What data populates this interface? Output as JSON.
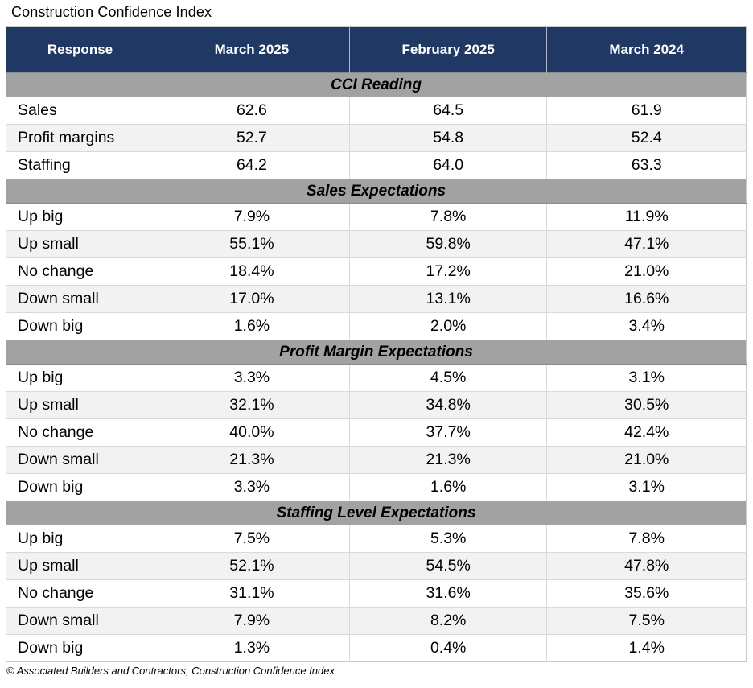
{
  "title": "Construction Confidence Index",
  "footer": "© Associated Builders and Contractors, Construction Confidence Index",
  "colors": {
    "header_bg": "#1f3864",
    "header_text": "#ffffff",
    "section_bg": "#a2a2a2",
    "row_alt_bg": "#f2f2f2",
    "border": "#d9d9d9"
  },
  "chart_data": {
    "type": "table",
    "title": "Construction Confidence Index",
    "columns": [
      "Response",
      "March 2025",
      "February 2025",
      "March 2024"
    ],
    "sections": [
      {
        "label": "CCI Reading",
        "rows": [
          [
            "Sales",
            "62.6",
            "64.5",
            "61.9"
          ],
          [
            "Profit margins",
            "52.7",
            "54.8",
            "52.4"
          ],
          [
            "Staffing",
            "64.2",
            "64.0",
            "63.3"
          ]
        ]
      },
      {
        "label": "Sales Expectations",
        "rows": [
          [
            "Up big",
            "7.9%",
            "7.8%",
            "11.9%"
          ],
          [
            "Up small",
            "55.1%",
            "59.8%",
            "47.1%"
          ],
          [
            "No change",
            "18.4%",
            "17.2%",
            "21.0%"
          ],
          [
            "Down small",
            "17.0%",
            "13.1%",
            "16.6%"
          ],
          [
            "Down big",
            "1.6%",
            "2.0%",
            "3.4%"
          ]
        ]
      },
      {
        "label": "Profit Margin Expectations",
        "rows": [
          [
            "Up big",
            "3.3%",
            "4.5%",
            "3.1%"
          ],
          [
            "Up small",
            "32.1%",
            "34.8%",
            "30.5%"
          ],
          [
            "No change",
            "40.0%",
            "37.7%",
            "42.4%"
          ],
          [
            "Down small",
            "21.3%",
            "21.3%",
            "21.0%"
          ],
          [
            "Down big",
            "3.3%",
            "1.6%",
            "3.1%"
          ]
        ]
      },
      {
        "label": "Staffing Level Expectations",
        "rows": [
          [
            "Up big",
            "7.5%",
            "5.3%",
            "7.8%"
          ],
          [
            "Up small",
            "52.1%",
            "54.5%",
            "47.8%"
          ],
          [
            "No change",
            "31.1%",
            "31.6%",
            "35.6%"
          ],
          [
            "Down small",
            "7.9%",
            "8.2%",
            "7.5%"
          ],
          [
            "Down big",
            "1.3%",
            "0.4%",
            "1.4%"
          ]
        ]
      }
    ]
  }
}
